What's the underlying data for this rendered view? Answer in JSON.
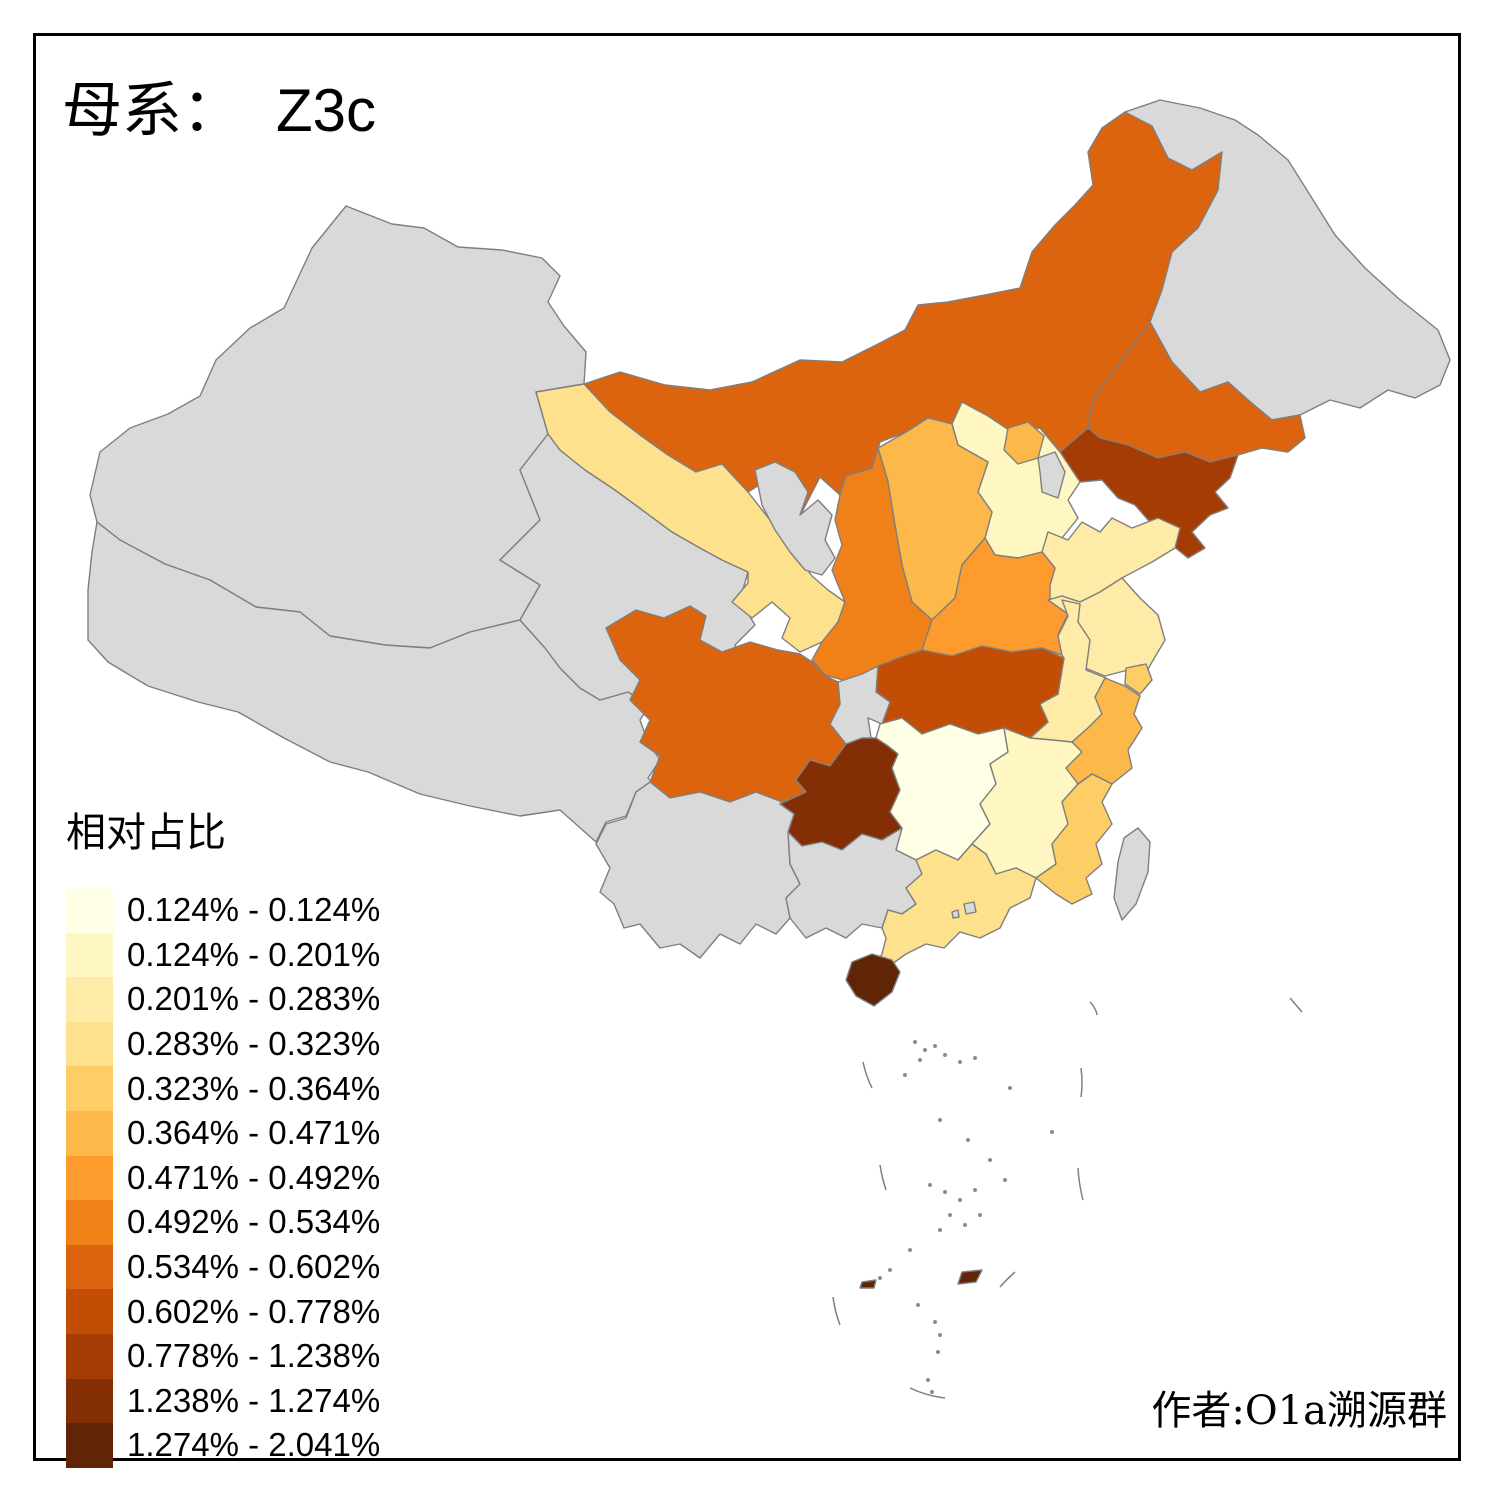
{
  "title": {
    "prefix": "母系：",
    "haplogroup": "Z3c"
  },
  "legend": {
    "title": "相对占比",
    "no_data_color": "#D9D9D9",
    "classes": [
      {
        "label": "0.124% - 0.124%",
        "color": "#FFFFE5"
      },
      {
        "label": "0.124% - 0.201%",
        "color": "#FFF7C2"
      },
      {
        "label": "0.201% - 0.283%",
        "color": "#FEEBA8"
      },
      {
        "label": "0.283% - 0.323%",
        "color": "#FDE18C"
      },
      {
        "label": "0.323% - 0.364%",
        "color": "#FECE66"
      },
      {
        "label": "0.364% - 0.471%",
        "color": "#FDB84A"
      },
      {
        "label": "0.471% - 0.492%",
        "color": "#FD9B2E"
      },
      {
        "label": "0.492% - 0.534%",
        "color": "#F08119"
      },
      {
        "label": "0.534% - 0.602%",
        "color": "#DC640F"
      },
      {
        "label": "0.602% - 0.778%",
        "color": "#C44D06"
      },
      {
        "label": "0.778% - 1.238%",
        "color": "#A53C03"
      },
      {
        "label": "1.238% - 1.274%",
        "color": "#842E05"
      },
      {
        "label": "1.274% - 2.041%",
        "color": "#5F2506"
      }
    ]
  },
  "attribution": "作者:O1a溯源群",
  "map": {
    "border_color": "#7F7F7F",
    "background": "#FFFFFF",
    "provinces": [
      {
        "id": "xinjiang",
        "class": null
      },
      {
        "id": "xizang",
        "class": null
      },
      {
        "id": "qinghai",
        "class": null
      },
      {
        "id": "neimenggu",
        "class": 9
      },
      {
        "id": "heilongjiang",
        "class": null
      },
      {
        "id": "gansu",
        "class": 4
      },
      {
        "id": "ningxia",
        "class": null
      },
      {
        "id": "jilin",
        "class": 9
      },
      {
        "id": "liaoning",
        "class": 11
      },
      {
        "id": "hebei",
        "class": 2
      },
      {
        "id": "shanxi",
        "class": 6
      },
      {
        "id": "shaanxi",
        "class": 8
      },
      {
        "id": "shandong",
        "class": 3
      },
      {
        "id": "henan",
        "class": 7
      },
      {
        "id": "jiangsu",
        "class": 3
      },
      {
        "id": "anhui",
        "class": 3
      },
      {
        "id": "hubei",
        "class": 10
      },
      {
        "id": "chongqing",
        "class": null
      },
      {
        "id": "sichuan",
        "class": 9
      },
      {
        "id": "guizhou",
        "class": 12
      },
      {
        "id": "yunnan",
        "class": null
      },
      {
        "id": "hunan",
        "class": 1
      },
      {
        "id": "jiangxi",
        "class": 2
      },
      {
        "id": "zhejiang",
        "class": 6
      },
      {
        "id": "fujian",
        "class": 5
      },
      {
        "id": "guangxi",
        "class": null
      },
      {
        "id": "guangdong",
        "class": 4
      },
      {
        "id": "hainan",
        "class": 13
      },
      {
        "id": "taiwan",
        "class": null
      },
      {
        "id": "beijing",
        "class": 6
      },
      {
        "id": "tianjin",
        "class": null
      },
      {
        "id": "shanghai",
        "class": 5
      },
      {
        "id": "hongkong",
        "class": null
      },
      {
        "id": "macau",
        "class": null
      },
      {
        "id": "islet-1",
        "class": 13
      },
      {
        "id": "islet-2",
        "class": 13
      }
    ]
  }
}
